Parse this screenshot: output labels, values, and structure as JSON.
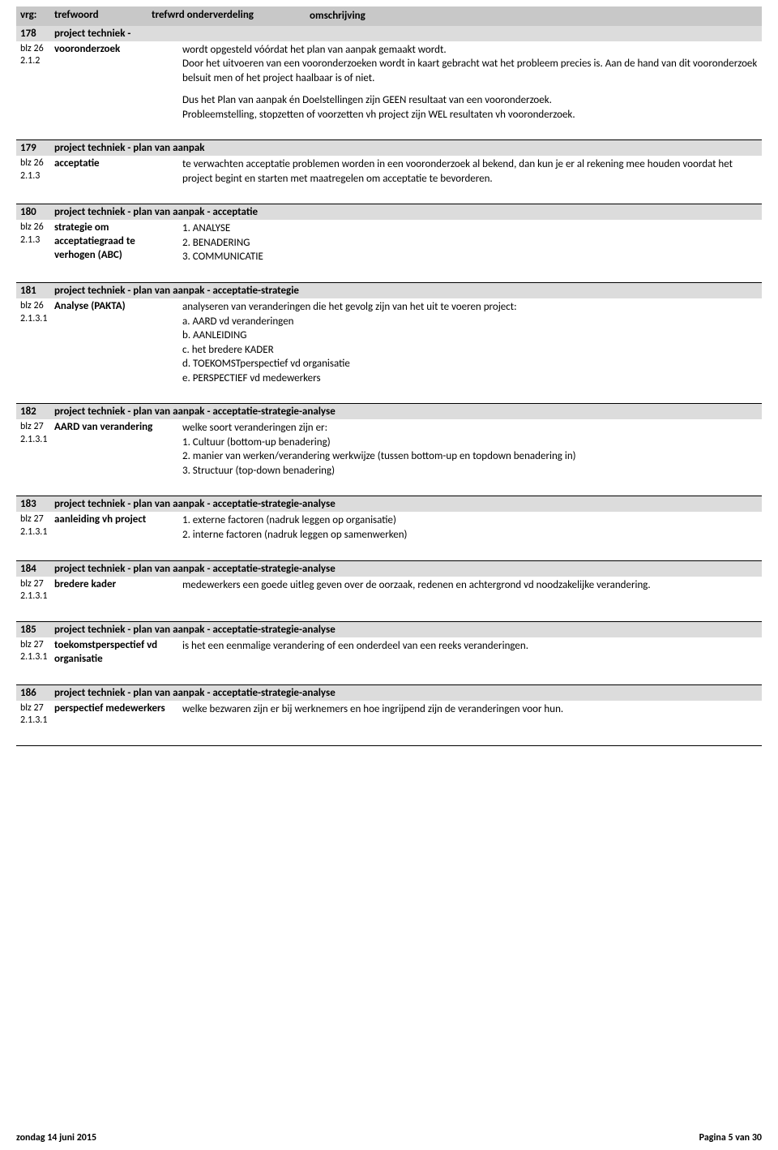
{
  "header": {
    "vrg": "vrg:",
    "tref": "trefwoord",
    "sub": "trefwrd onderverdeling",
    "desc": "omschrijving"
  },
  "s178": {
    "num": "178",
    "title": "project techniek -",
    "blz": "blz 26",
    "para": "2.1.2",
    "term": "vooronderzoek",
    "desc1": "wordt opgesteld vóórdat het plan van aanpak gemaakt wordt.\nDoor het uitvoeren van een vooronderzoeken wordt in kaart gebracht wat het probleem precies is. Aan de hand van dit vooronderzoek belsuit men of het project haalbaar is of niet.",
    "desc2": "Dus het Plan van aanpak én Doelstellingen zijn GEEN resultaat van een vooronderzoek.\nProbleemstelling, stopzetten of voorzetten vh project zijn WEL resultaten vh vooronderzoek."
  },
  "s179": {
    "num": "179",
    "title": "project techniek - plan van aanpak",
    "blz": "blz 26",
    "para": "2.1.3",
    "term": "acceptatie",
    "desc": "te verwachten acceptatie problemen worden in een vooronderzoek al bekend, dan kun je er al rekening mee houden voordat het project begint en starten met maatregelen om acceptatie te bevorderen."
  },
  "s180": {
    "num": "180",
    "title": "project techniek - plan van aanpak - acceptatie",
    "blz": "blz 26",
    "para": "2.1.3",
    "term": "strategie om acceptatiegraad te verhogen (ABC)",
    "d1": "1. ANALYSE",
    "d2": "2. BENADERING",
    "d3": "3. COMMUNICATIE"
  },
  "s181": {
    "num": "181",
    "title": "project techniek - plan van aanpak - acceptatie-strategie",
    "blz": "blz 26",
    "para": "2.1.3.1",
    "term": "Analyse  (PAKTA)",
    "d0": "analyseren van veranderingen die het gevolg zijn van het uit te voeren project:",
    "d1": "a. AARD vd veranderingen",
    "d2": "b. AANLEIDING",
    "d3": "c. het bredere KADER",
    "d4": "d. TOEKOMSTperspectief vd organisatie",
    "d5": "e. PERSPECTIEF vd medewerkers"
  },
  "s182": {
    "num": "182",
    "title": "project techniek - plan van aanpak - acceptatie-strategie-analyse",
    "blz": "blz 27",
    "para": "2.1.3.1",
    "term": "AARD van verandering",
    "d0": "welke soort veranderingen zijn er:",
    "d1": "1. Cultuur (bottom-up benadering)",
    "d2": "2. manier van werken/verandering werkwijze (tussen bottom-up en topdown benadering in)",
    "d3": "3. Structuur (top-down benadering)"
  },
  "s183": {
    "num": "183",
    "title": "project techniek - plan van aanpak - acceptatie-strategie-analyse",
    "blz": "blz 27",
    "para": "2.1.3.1",
    "term": "aanleiding vh project",
    "d1": "1. externe factoren (nadruk leggen op organisatie)",
    "d2": "2. interne factoren (nadruk leggen op samenwerken)"
  },
  "s184": {
    "num": "184",
    "title": "project techniek - plan van aanpak - acceptatie-strategie-analyse",
    "blz": "blz 27",
    "para": "2.1.3.1",
    "term": "bredere kader",
    "desc": "medewerkers een goede uitleg geven over de oorzaak, redenen en achtergrond vd noodzakelijke verandering."
  },
  "s185": {
    "num": "185",
    "title": "project techniek - plan van aanpak - acceptatie-strategie-analyse",
    "blz": "blz 27",
    "para": "2.1.3.1",
    "term": "toekomstperspectief vd organisatie",
    "desc": "is het een eenmalige verandering of een onderdeel van een reeks veranderingen."
  },
  "s186": {
    "num": "186",
    "title": "project techniek - plan van aanpak - acceptatie-strategie-analyse",
    "blz": "blz 27",
    "para": "2.1.3.1",
    "term": "perspectief medewerkers",
    "desc": "welke bezwaren zijn er bij werknemers en hoe ingrijpend zijn de veranderingen voor hun."
  },
  "footer": {
    "date": "zondag 14 juni 2015",
    "page": "Pagina 5 van 30"
  }
}
